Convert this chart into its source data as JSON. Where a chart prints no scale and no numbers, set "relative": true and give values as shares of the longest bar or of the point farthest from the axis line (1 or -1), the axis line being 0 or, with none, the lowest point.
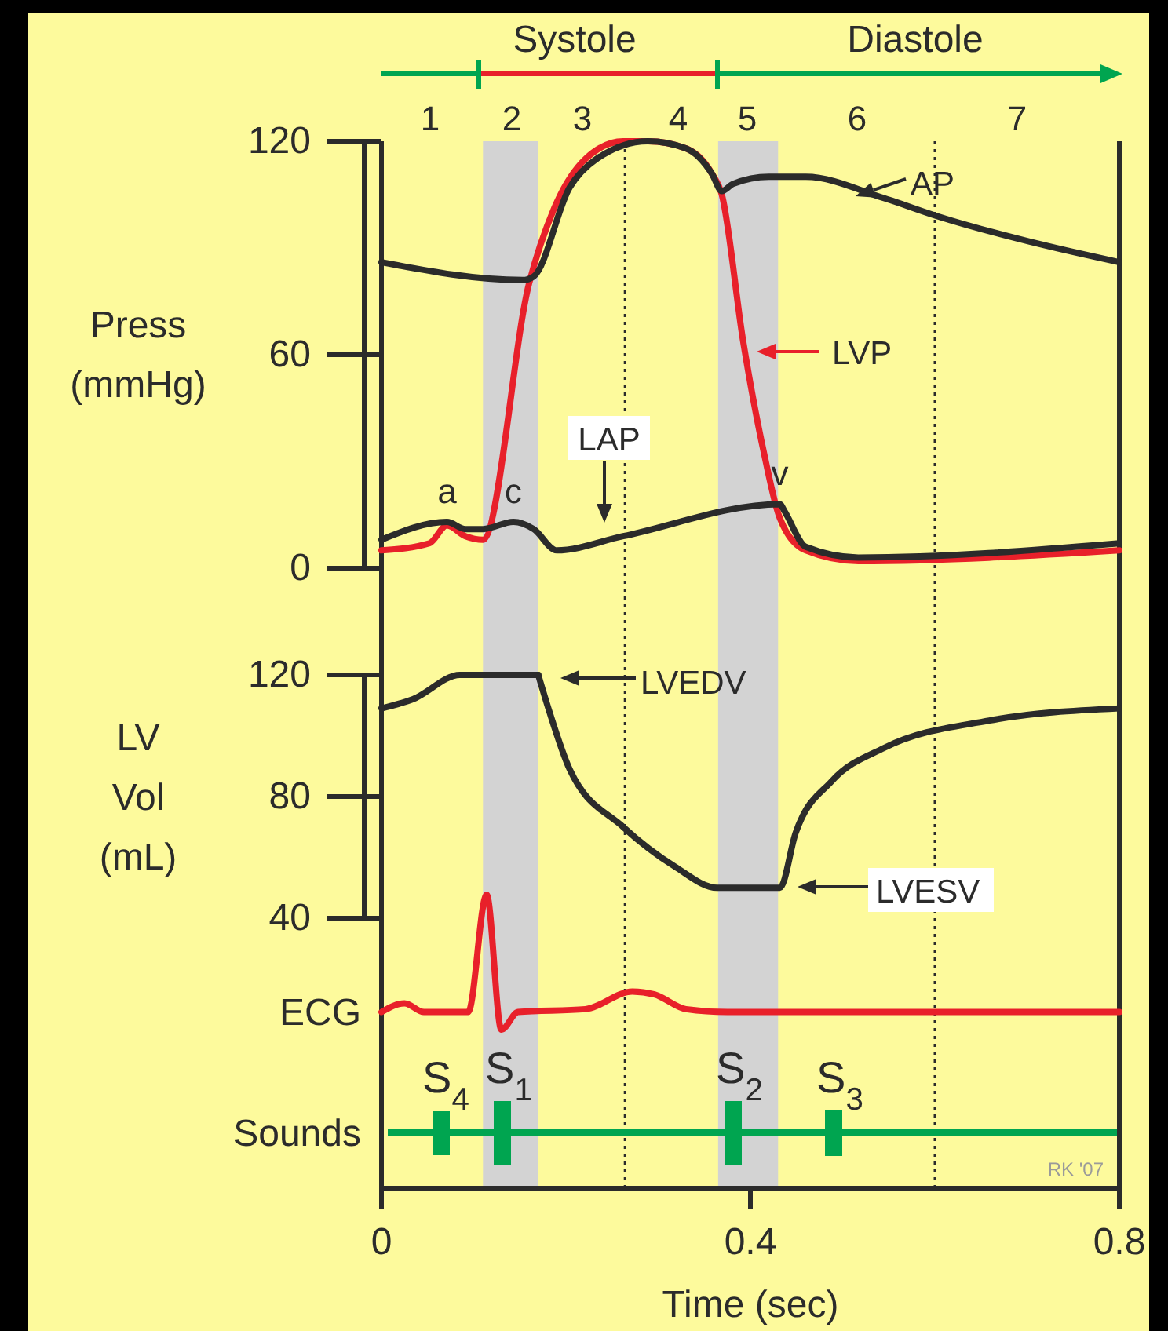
{
  "chart_data": [
    {
      "type": "line",
      "ylabel": "Press\n(mmHg)",
      "xlim": [
        0,
        0.8
      ],
      "ylim": [
        0,
        120
      ],
      "yticks": [
        0,
        60,
        120
      ],
      "tick_labels": "y",
      "legend": "top right",
      "series": [
        {
          "name": "LVP",
          "color": "#e8202a",
          "x": [
            0,
            0.052,
            0.071,
            0.091,
            0.11,
            0.16,
            0.187,
            0.221,
            0.262,
            0.289,
            0.33,
            0.358,
            0.369,
            0.392,
            0.415,
            0.432,
            0.46,
            0.517,
            0.8
          ],
          "values": [
            5,
            7,
            12,
            9,
            8,
            80,
            101,
            115,
            120,
            120,
            118,
            111,
            105,
            64,
            32,
            14,
            5,
            2,
            5
          ]
        },
        {
          "name": "AP",
          "color": "#2b2b2b",
          "x": [
            0,
            0.153,
            0.165,
            0.204,
            0.233,
            0.289,
            0.33,
            0.358,
            0.369,
            0.381,
            0.42,
            0.46,
            0.545,
            0.602,
            0.715,
            0.8
          ],
          "values": [
            86,
            81,
            82,
            107,
            115,
            120,
            118,
            111,
            106,
            108,
            110,
            110,
            104,
            99,
            91,
            86
          ]
        },
        {
          "name": "LAP",
          "color": "#2b2b2b",
          "x": [
            0,
            0.071,
            0.091,
            0.11,
            0.143,
            0.165,
            0.19,
            0.262,
            0.432,
            0.437,
            0.46,
            0.517,
            0.8
          ],
          "values": [
            8,
            13,
            11,
            11,
            13,
            11,
            5,
            9,
            18,
            16,
            6,
            3,
            7
          ]
        }
      ],
      "bands": [
        {
          "axis": "x",
          "from": 0.11,
          "to": 0.17,
          "color": "#d3d3d3"
        },
        {
          "axis": "x",
          "from": 0.365,
          "to": 0.43,
          "color": "#d3d3d3"
        }
      ],
      "ref_lines": [
        {
          "axis": "x",
          "value": 0.264,
          "line_style": "dotted"
        },
        {
          "axis": "x",
          "value": 0.6,
          "line_style": "dotted"
        }
      ],
      "annotations": [
        {
          "text": "a",
          "x": 0.071,
          "y": 13
        },
        {
          "text": "c",
          "x": 0.143,
          "y": 13
        },
        {
          "text": "v",
          "x": 0.432,
          "y": 18
        },
        "Systole",
        "Diastole",
        "1",
        "2",
        "3",
        "4",
        "5",
        "6",
        "7"
      ]
    },
    {
      "type": "line",
      "ylabel": "LV\nVol\n(mL)",
      "xlim": [
        0,
        0.8
      ],
      "ylim": [
        40,
        120
      ],
      "yticks": [
        40,
        80,
        120
      ],
      "tick_labels": "y",
      "legend": "right",
      "series": [
        {
          "name": "LVEDV",
          "color": "#2b2b2b",
          "x": [
            0,
            0.034,
            0.085,
            0.114,
            0.17
          ],
          "values": [
            109,
            112,
            120,
            120,
            120
          ]
        },
        {
          "name": "LVESV",
          "color": "#2b2b2b",
          "x": [
            0.17,
            0.182,
            0.204,
            0.262,
            0.318,
            0.364,
            0.432,
            0.449,
            0.488,
            0.545,
            0.659,
            0.8
          ],
          "values": [
            120,
            108,
            89,
            70,
            57,
            50,
            50,
            68,
            85,
            96,
            105,
            109
          ]
        }
      ],
      "bands": [
        {
          "axis": "x",
          "from": 0.11,
          "to": 0.17,
          "color": "#d3d3d3"
        },
        {
          "axis": "x",
          "from": 0.365,
          "to": 0.43,
          "color": "#d3d3d3"
        }
      ],
      "ref_lines": [
        {
          "axis": "x",
          "value": 0.264,
          "line_style": "dotted"
        },
        {
          "axis": "x",
          "value": 0.6,
          "line_style": "dotted"
        }
      ]
    },
    {
      "type": "line",
      "ylabel": "ECG",
      "xlabel": "Time (sec)",
      "xlim": [
        0,
        0.8
      ],
      "xticks": [
        0,
        0.4,
        0.8
      ],
      "tick_labels": "x",
      "relative": true,
      "series": [
        {
          "color": "#e8202a",
          "x": [
            0,
            0.025,
            0.046,
            0.094,
            0.114,
            0.13,
            0.148,
            0.221,
            0.272,
            0.296,
            0.33,
            0.375,
            0.8
          ],
          "values": [
            0.6,
            0.63,
            0.6,
            0.6,
            1,
            0.54,
            0.6,
            0.61,
            0.67,
            0.66,
            0.61,
            0.6,
            0.6
          ]
        }
      ],
      "bands": [
        {
          "axis": "x",
          "from": 0.11,
          "to": 0.17,
          "color": "#d3d3d3"
        },
        {
          "axis": "x",
          "from": 0.365,
          "to": 0.43,
          "color": "#d3d3d3"
        }
      ],
      "ref_lines": [
        {
          "axis": "x",
          "value": 0.264,
          "line_style": "dotted"
        },
        {
          "axis": "x",
          "value": 0.6,
          "line_style": "dotted"
        },
        {
          "axis": "y",
          "value": 0.19,
          "color": "#00a550"
        }
      ],
      "annotations": [
        "Sounds",
        "S$_{4}$",
        "S$_{1}$",
        "S$_{2}$",
        "S$_{3}$",
        "RK '07"
      ]
    }
  ]
}
